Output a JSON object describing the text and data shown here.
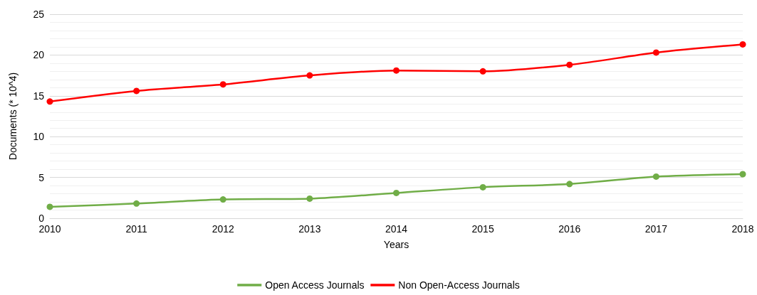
{
  "chart_data": {
    "type": "line",
    "xlabel": "Years",
    "ylabel": "Documents (* 10^4)",
    "categories": [
      "2010",
      "2011",
      "2012",
      "2013",
      "2014",
      "2015",
      "2016",
      "2017",
      "2018"
    ],
    "series": [
      {
        "name": "Open Access Journals",
        "color": "#70ad47",
        "values": [
          1.4,
          1.8,
          2.3,
          2.4,
          3.1,
          3.8,
          4.2,
          5.1,
          5.4
        ]
      },
      {
        "name": "Non Open-Access Journals",
        "color": "#ff0000",
        "values": [
          14.3,
          15.6,
          16.4,
          17.5,
          18.1,
          18.0,
          18.8,
          20.3,
          21.3
        ]
      }
    ],
    "ylim": [
      0,
      25
    ],
    "yticks": [
      0,
      5,
      10,
      15,
      20,
      25
    ],
    "grid": "y",
    "legend": "bottom",
    "marker": "circle",
    "line_style": "solid"
  }
}
